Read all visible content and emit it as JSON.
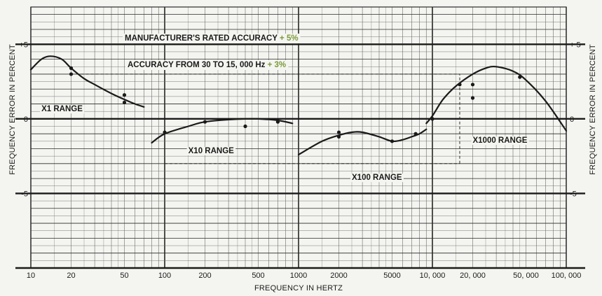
{
  "chart_data": {
    "type": "line",
    "x_scale": "log",
    "xlim": [
      10,
      100000
    ],
    "ylim": [
      -10,
      7.5
    ],
    "xlabel": "FREQUENCY IN HERTZ",
    "ylabel_left": "FREQUENCY ERROR IN PERCENT",
    "ylabel_right": "FREQUENCY ERROR IN PERCENT",
    "x_ticks": [
      {
        "value": 10,
        "label": "10"
      },
      {
        "value": 20,
        "label": "20"
      },
      {
        "value": 50,
        "label": "50"
      },
      {
        "value": 100,
        "label": "100"
      },
      {
        "value": 200,
        "label": "200"
      },
      {
        "value": 500,
        "label": "500"
      },
      {
        "value": 1000,
        "label": "1000"
      },
      {
        "value": 2000,
        "label": "2000"
      },
      {
        "value": 5000,
        "label": "5000"
      },
      {
        "value": 10000,
        "label": "10, 000"
      },
      {
        "value": 20000,
        "label": "20, 000"
      },
      {
        "value": 50000,
        "label": "50, 000"
      },
      {
        "value": 100000,
        "label": "100, 000"
      }
    ],
    "y_ticks_left": [
      {
        "value": 5,
        "label": "+5"
      },
      {
        "value": 0,
        "label": "0"
      },
      {
        "value": -5,
        "label": "-5"
      }
    ],
    "y_ticks_right": [
      {
        "value": 5,
        "label": "+ 5"
      },
      {
        "value": 0,
        "label": "0"
      },
      {
        "value": -5,
        "label": "-5"
      }
    ],
    "reference_lines": [
      {
        "y": 5,
        "style": "solid-heavy"
      },
      {
        "y": -5,
        "style": "solid-heavy"
      },
      {
        "y": 0,
        "style": "solid-heavy"
      },
      {
        "y": -10,
        "style": "solid-heavy"
      },
      {
        "y": 3,
        "x_from": 20,
        "x_to": 16000,
        "style": "dashed"
      },
      {
        "y": -3,
        "x_from": 100,
        "x_to": 16000,
        "style": "dashed"
      },
      {
        "x": 16000,
        "y_from": -3,
        "y_to": 3,
        "style": "dashed"
      }
    ],
    "annotations": {
      "rated_accuracy_text": "MANUFACTURER'S RATED ACCURACY ",
      "rated_accuracy_value": "+ 5%",
      "accuracy_range_text": "ACCURACY FROM 30 TO 15, 000 Hz ",
      "accuracy_range_value": "+ 3%"
    },
    "series": [
      {
        "name": "X1 RANGE",
        "x": [
          10,
          12,
          14,
          17,
          20,
          25,
          30,
          40,
          50,
          60,
          70
        ],
        "y": [
          3.3,
          4.0,
          4.2,
          4.0,
          3.4,
          2.7,
          2.3,
          1.7,
          1.3,
          1.0,
          0.8
        ],
        "points": [
          [
            20,
            3.4
          ],
          [
            20,
            3.0
          ],
          [
            50,
            1.6
          ],
          [
            50,
            1.1
          ]
        ]
      },
      {
        "name": "X10 RANGE",
        "x": [
          80,
          100,
          150,
          200,
          300,
          400,
          500,
          700,
          900
        ],
        "y": [
          -1.6,
          -1.0,
          -0.5,
          -0.2,
          -0.05,
          0.0,
          0.0,
          -0.1,
          -0.3
        ],
        "points": [
          [
            100,
            -0.9
          ],
          [
            200,
            -0.2
          ],
          [
            400,
            -0.5
          ],
          [
            700,
            -0.2
          ]
        ]
      },
      {
        "name": "X100 RANGE",
        "x": [
          1000,
          1500,
          2000,
          2500,
          3000,
          4000,
          5000,
          6000,
          7000,
          8000,
          9000
        ],
        "y": [
          -2.4,
          -1.5,
          -1.1,
          -0.9,
          -0.9,
          -1.2,
          -1.5,
          -1.4,
          -1.2,
          -1.0,
          -0.7
        ],
        "points": [
          [
            2000,
            -0.9
          ],
          [
            2000,
            -1.2
          ],
          [
            5000,
            -1.5
          ],
          [
            7500,
            -1.0
          ]
        ]
      },
      {
        "name": "X1000 RANGE",
        "x": [
          9000,
          10000,
          12000,
          15000,
          20000,
          25000,
          30000,
          40000,
          50000,
          70000,
          100000
        ],
        "y": [
          -0.3,
          0.2,
          1.3,
          2.2,
          3.0,
          3.4,
          3.5,
          3.2,
          2.6,
          1.2,
          -0.8
        ],
        "points": [
          [
            10000,
            0.0
          ],
          [
            16000,
            2.3
          ],
          [
            20000,
            2.3
          ],
          [
            20000,
            1.4
          ],
          [
            45000,
            2.8
          ]
        ]
      }
    ],
    "range_labels": [
      {
        "text": "X1 RANGE",
        "x": 12,
        "y": 0.5
      },
      {
        "text": "X10 RANGE",
        "x": 150,
        "y": -2.3
      },
      {
        "text": "X100 RANGE",
        "x": 2500,
        "y": -4.1
      },
      {
        "text": "X1000 RANGE",
        "x": 20000,
        "y": -1.6
      }
    ],
    "colors": {
      "background": "#f4f4f0",
      "grid_major": "#2a2a2a",
      "grid_minor": "#6a6a6a",
      "curve": "#1a1a1a",
      "accent_green": "#7a9a3a"
    }
  }
}
